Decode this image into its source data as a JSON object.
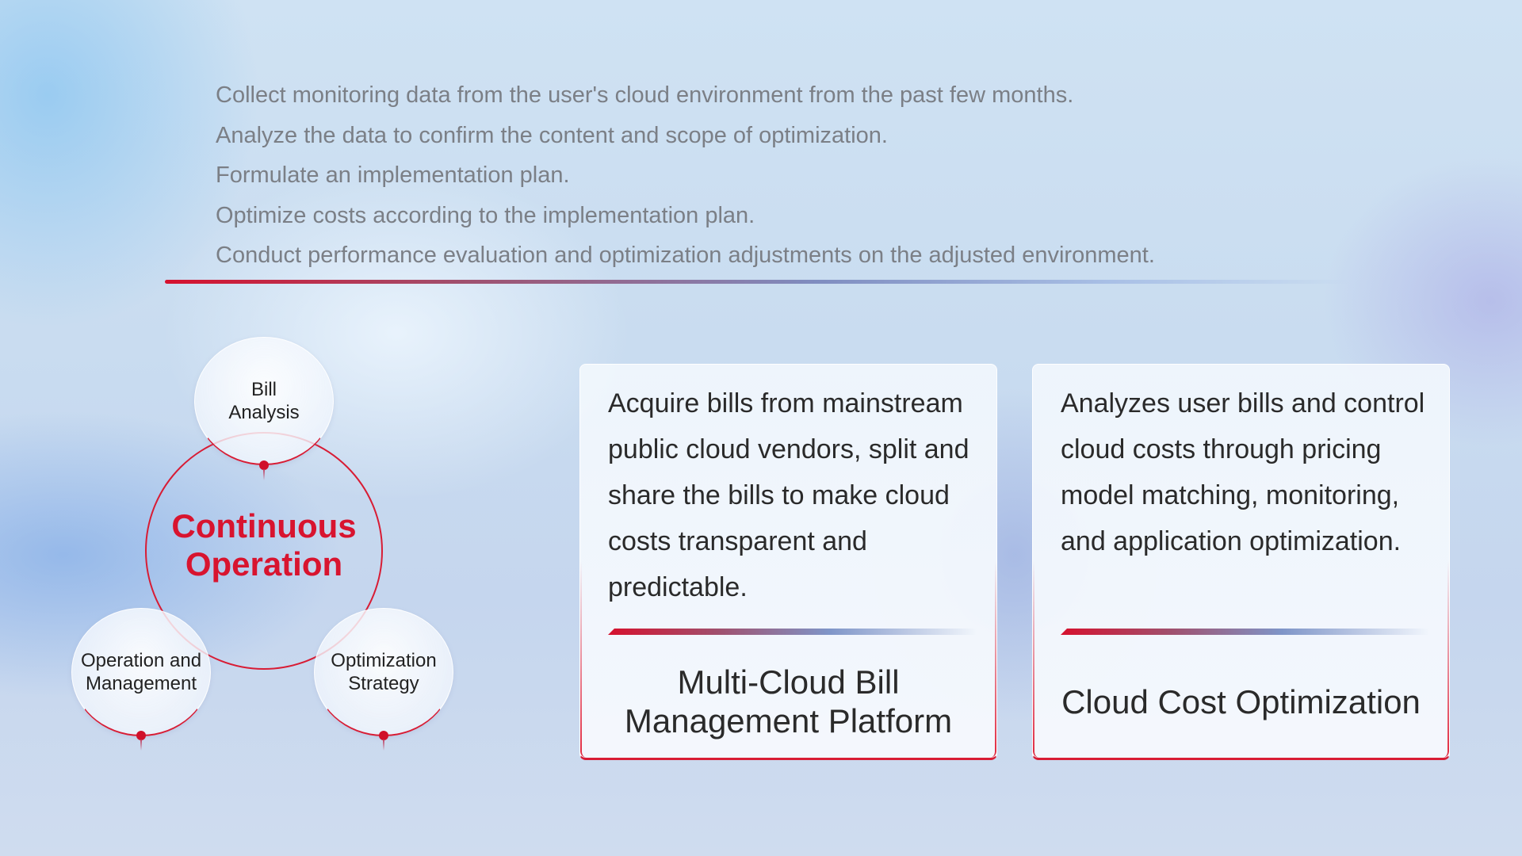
{
  "steps": [
    "Collect monitoring data from the user's cloud environment from the past few months.",
    "Analyze the data to confirm the content and scope of optimization.",
    "Formulate an implementation plan.",
    "Optimize costs according to the implementation plan.",
    "Conduct performance evaluation and optimization adjustments on the adjusted environment."
  ],
  "cycle": {
    "center_line1": "Continuous",
    "center_line2": "Operation",
    "nodes": [
      "Bill Analysis",
      "Operation and Management",
      "Optimization Strategy"
    ]
  },
  "cards": [
    {
      "description": "Acquire bills from mainstream public cloud vendors, split and share the bills to make cloud costs transparent and predictable.",
      "title": "Multi-Cloud Bill Management Platform"
    },
    {
      "description": "Analyzes user bills and control cloud costs through pricing model matching, monitoring, and application optimization.",
      "title": "Cloud Cost Optimization"
    }
  ],
  "colors": {
    "accent": "#d81c34",
    "text": "#2a2a2a",
    "muted": "#7b7f86"
  }
}
